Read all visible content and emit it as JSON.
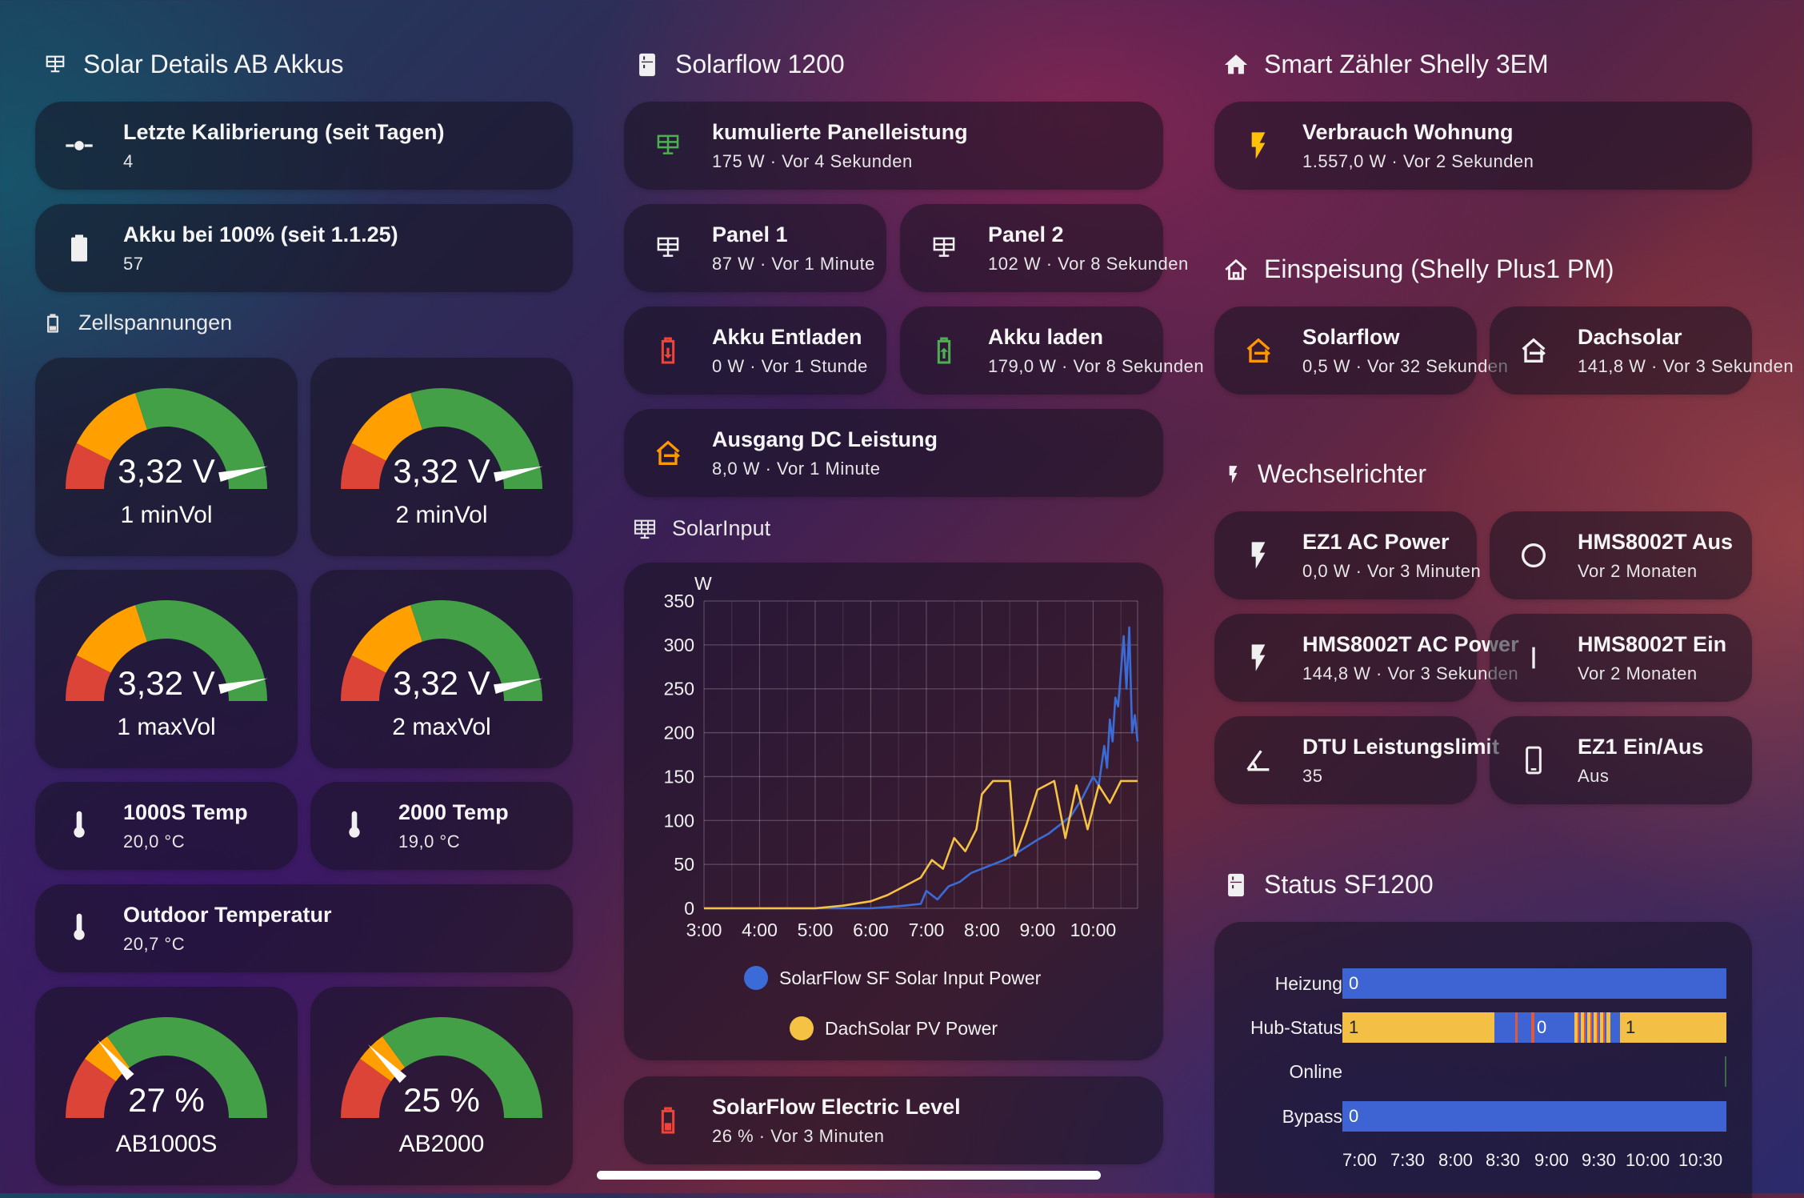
{
  "colors": {
    "gauge_green": "#43a047",
    "gauge_orange": "#ffa000",
    "gauge_red": "#db4437",
    "icon_green": "#4caf50",
    "icon_red": "#f44336",
    "icon_orange": "#ff9800",
    "icon_yellow": "#ffc107",
    "series_blue": "#3b6bd6",
    "series_yellow": "#f6c244"
  },
  "left": {
    "title": "Solar Details AB Akkus",
    "title_icon": "solar-panel-icon",
    "calibration": {
      "name": "Letzte Kalibrierung (seit Tagen)",
      "state": "4",
      "icon": "slider-icon"
    },
    "full": {
      "name": "Akku bei 100% (seit 1.1.25)",
      "state": "57",
      "icon": "battery-icon"
    },
    "cells_title": "Zellspannungen",
    "cells_icon": "battery-outline-icon",
    "gauges": [
      {
        "value": "3,32 V",
        "label": "1 minVol",
        "fraction": 0.93
      },
      {
        "value": "3,32 V",
        "label": "2 minVol",
        "fraction": 0.93
      },
      {
        "value": "3,32 V",
        "label": "1 maxVol",
        "fraction": 0.93
      },
      {
        "value": "3,32 V",
        "label": "2 maxVol",
        "fraction": 0.93
      }
    ],
    "temp1": {
      "name": "1000S Temp",
      "state": "20,0 °C",
      "icon": "thermometer-icon"
    },
    "temp2": {
      "name": "2000 Temp",
      "state": "19,0 °C",
      "icon": "thermometer-icon"
    },
    "outdoor": {
      "name": "Outdoor Temperatur",
      "state": "20,7 °C",
      "icon": "thermometer-icon"
    },
    "soc": [
      {
        "value": "27 %",
        "label": "AB1000S",
        "fraction": 0.27
      },
      {
        "value": "25 %",
        "label": "AB2000",
        "fraction": 0.25
      }
    ]
  },
  "middle": {
    "title": "Solarflow 1200",
    "title_icon": "fridge-icon",
    "total": {
      "name": "kumulierte Panelleistung",
      "state": "175 W · Vor 4 Sekunden"
    },
    "panel1": {
      "name": "Panel 1",
      "state": "87 W · Vor 1 Minute"
    },
    "panel2": {
      "name": "Panel 2",
      "state": "102 W · Vor 8 Sekunden"
    },
    "discharge": {
      "name": "Akku Entladen",
      "state": "0 W · Vor 1 Stunde"
    },
    "charge": {
      "name": "Akku laden",
      "state": "179,0 W · Vor 8 Sekunden"
    },
    "dc_out": {
      "name": "Ausgang DC Leistung",
      "state": "8,0 W · Vor 1 Minute"
    },
    "chart_title": "SolarInput",
    "electric": {
      "name": "SolarFlow Electric Level",
      "state": "26 % · Vor 3 Minuten"
    }
  },
  "chart_data": {
    "type": "line",
    "title": "SolarInput",
    "ylabel": "W",
    "ylim": [
      0,
      350
    ],
    "yticks": [
      0,
      50,
      100,
      150,
      200,
      250,
      300,
      350
    ],
    "xticks": [
      "3:00",
      "4:00",
      "5:00",
      "6:00",
      "7:00",
      "8:00",
      "9:00",
      "10:00"
    ],
    "xlim_hours": [
      3.0,
      10.8
    ],
    "grid": true,
    "legend_position": "bottom",
    "series": [
      {
        "name": "SolarFlow SF Solar Input Power",
        "x": [
          3.0,
          6.0,
          6.2,
          6.6,
          6.9,
          7.0,
          7.2,
          7.4,
          7.6,
          7.8,
          8.0,
          8.2,
          8.4,
          8.6,
          8.8,
          9.0,
          9.2,
          9.4,
          9.6,
          9.8,
          10.0,
          10.1,
          10.2,
          10.25,
          10.3,
          10.35,
          10.4,
          10.45,
          10.5,
          10.55,
          10.6,
          10.65,
          10.7,
          10.75,
          10.8
        ],
        "y": [
          0,
          0,
          1,
          3,
          5,
          20,
          10,
          25,
          30,
          40,
          45,
          50,
          55,
          62,
          70,
          78,
          85,
          95,
          105,
          125,
          150,
          140,
          185,
          160,
          215,
          190,
          240,
          230,
          270,
          310,
          250,
          320,
          200,
          220,
          190
        ]
      },
      {
        "name": "DachSolar PV Power",
        "x": [
          3.0,
          5.0,
          5.5,
          6.0,
          6.3,
          6.6,
          6.9,
          7.1,
          7.3,
          7.5,
          7.7,
          7.9,
          8.0,
          8.2,
          8.5,
          8.6,
          8.8,
          9.0,
          9.3,
          9.5,
          9.7,
          9.9,
          10.1,
          10.3,
          10.5,
          10.7,
          10.8
        ],
        "y": [
          0,
          0,
          3,
          8,
          15,
          25,
          35,
          55,
          45,
          80,
          65,
          90,
          130,
          145,
          145,
          60,
          95,
          135,
          145,
          80,
          140,
          90,
          140,
          120,
          145,
          145,
          145
        ]
      }
    ]
  },
  "right": {
    "title": "Smart Zähler Shelly 3EM",
    "title_icon": "home-icon",
    "consumption": {
      "name": "Verbrauch Wohnung",
      "state": "1.557,0 W · Vor 2 Sekunden"
    },
    "feed_title": "Einspeisung (Shelly Plus1 PM)",
    "feed_icon": "home-outline-icon",
    "sf": {
      "name": "Solarflow",
      "state": "0,5 W · Vor 32 Sekunden"
    },
    "dach": {
      "name": "Dachsolar",
      "state": "141,8 W · Vor 3 Sekunden"
    },
    "inv_title": "Wechselrichter",
    "inv_icon": "flash-icon",
    "ez1_ac": {
      "name": "EZ1 AC Power",
      "state": "0,0 W · Vor 3 Minuten"
    },
    "hms_a": {
      "name": "HMS8002T Aus",
      "state": "Vor 2 Monaten"
    },
    "hms_power": {
      "name": "HMS8002T AC Power",
      "state": "144,8 W · Vor 3 Sekunden"
    },
    "hms_on": {
      "name": "HMS8002T Ein",
      "state": "Vor 2 Monaten"
    },
    "dtu": {
      "name": "DTU Leistungslimit",
      "state": "35"
    },
    "ez1_onoff": {
      "name": "EZ1 Ein/Aus",
      "state": "Aus"
    },
    "status_title": "Status SF1200",
    "status_icon": "fridge-icon"
  },
  "timeline": {
    "rows": [
      "Heizung",
      "Hub-Status",
      "Online",
      "Bypass"
    ],
    "heizung_value": "0",
    "hub_values": [
      "1",
      "0",
      "1"
    ],
    "bypass_value": "0",
    "xticks": [
      "7:00",
      "7:30",
      "8:00",
      "8:30",
      "9:00",
      "9:30",
      "10:00",
      "10:30"
    ]
  }
}
